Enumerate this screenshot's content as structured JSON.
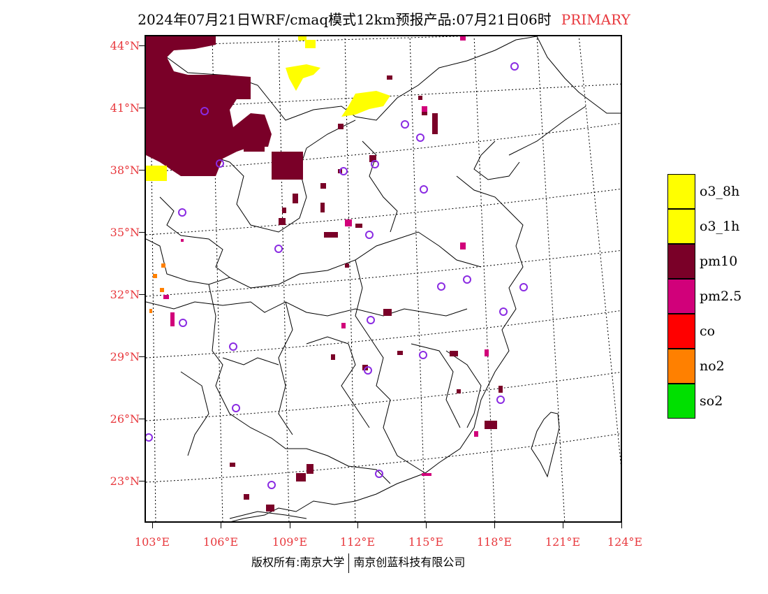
{
  "title": {
    "main": "2024年07月21日WRF/cmaq模式12km预报产品:07月21日06时",
    "tag": "PRIMARY"
  },
  "axes": {
    "lat_labels": [
      "44°N",
      "41°N",
      "38°N",
      "35°N",
      "32°N",
      "29°N",
      "26°N",
      "23°N"
    ],
    "lon_labels": [
      "103°E",
      "106°E",
      "109°E",
      "112°E",
      "115°E",
      "118°E",
      "121°E",
      "124°E"
    ]
  },
  "legend": {
    "items": [
      {
        "label": "o3_8h",
        "color": "#ffff00"
      },
      {
        "label": "o3_1h",
        "color": "#ffff00"
      },
      {
        "label": "pm10",
        "color": "#7a0028"
      },
      {
        "label": "pm2.5",
        "color": "#d1007a"
      },
      {
        "label": "co",
        "color": "#ff0000"
      },
      {
        "label": "no2",
        "color": "#ff8000"
      },
      {
        "label": "so2",
        "color": "#00e000"
      }
    ]
  },
  "footer": {
    "left": "版权所有:南京大学",
    "right": "南京创蓝科技有限公司"
  },
  "colors": {
    "label_red": "#e8383d",
    "station_marker": "#8a2be2"
  }
}
